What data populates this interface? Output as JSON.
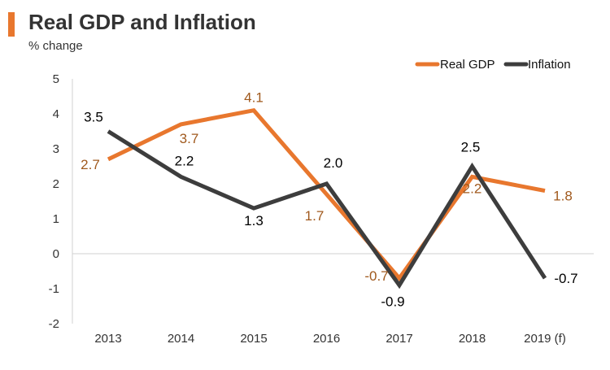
{
  "title": "Real GDP and Inflation",
  "subtitle": "% change",
  "colors": {
    "gdp": "#e8772e",
    "inflation": "#3d3d3d",
    "accent": "#e8772e",
    "gdp_label": "#a0591d"
  },
  "chart_data": {
    "type": "line",
    "title": "Real GDP and Inflation",
    "ylabel": "% change",
    "categories": [
      "2013",
      "2014",
      "2015",
      "2016",
      "2017",
      "2018",
      "2019 (f)"
    ],
    "ylim": [
      -2,
      5
    ],
    "yticks": [
      "-2",
      "-1",
      "0",
      "1",
      "2",
      "3",
      "4",
      "5"
    ],
    "legend_position": "top-right",
    "series": [
      {
        "name": "Real GDP",
        "values": [
          2.7,
          3.7,
          4.1,
          1.7,
          -0.7,
          2.2,
          1.8
        ],
        "labels": [
          "2.7",
          "3.7",
          "4.1",
          "1.7",
          "-0.7",
          "2.2",
          "1.8"
        ]
      },
      {
        "name": "Inflation",
        "values": [
          3.5,
          2.2,
          1.3,
          2.0,
          -0.9,
          2.5,
          -0.7
        ],
        "labels": [
          "3.5",
          "2.2",
          "1.3",
          "2.0",
          "-0.9",
          "2.5",
          "-0.7"
        ]
      }
    ]
  }
}
